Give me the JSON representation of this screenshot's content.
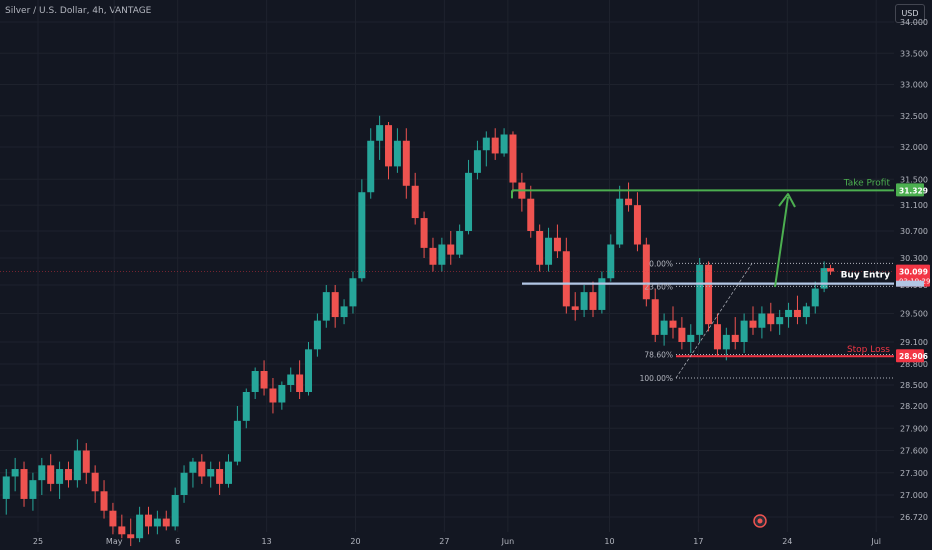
{
  "header": {
    "title": "Silver / U.S. Dollar, 4h, VANTAGE",
    "currency_button": "USD"
  },
  "colors": {
    "background": "#131722",
    "grid": "#1e222d",
    "up_candle": "#26a69a",
    "down_candle": "#ef5350",
    "take_profit": "#4caf50",
    "buy_entry": "#b2c6e4",
    "stop_loss": "#f23645",
    "price_badge": "#f23645"
  },
  "chart_data": {
    "type": "candlestick",
    "symbol": "Silver / U.S. Dollar",
    "interval": "4h",
    "exchange": "VANTAGE",
    "ylim": [
      26.6,
      34.3
    ],
    "y_ticks": [
      34.0,
      33.5,
      33.0,
      32.5,
      32.0,
      31.5,
      31.1,
      30.7,
      30.3,
      29.9,
      29.5,
      29.1,
      28.8,
      28.5,
      28.2,
      27.9,
      27.6,
      27.3,
      27.0,
      26.72
    ],
    "y_tick_labels": [
      "34.000",
      "33.500",
      "33.000",
      "32.500",
      "32.000",
      "31.500",
      "31.100",
      "30.700",
      "30.300",
      "29.900",
      "29.500",
      "29.100",
      "28.800",
      "28.500",
      "28.200",
      "27.900",
      "27.600",
      "27.300",
      "27.000",
      "26.720"
    ],
    "x_ticks": [
      {
        "label": "25",
        "x": 0.0
      },
      {
        "label": "May",
        "x": 6.0
      },
      {
        "label": "6",
        "x": 11.0
      },
      {
        "label": "13",
        "x": 18.0
      },
      {
        "label": "20",
        "x": 25.0
      },
      {
        "label": "27",
        "x": 32.0
      },
      {
        "label": "Jun",
        "x": 37.0
      },
      {
        "label": "10",
        "x": 45.0
      },
      {
        "label": "17",
        "x": 52.0
      },
      {
        "label": "24",
        "x": 59.0
      },
      {
        "label": "Jul",
        "x": 66.0
      }
    ],
    "x_range": [
      -2.6,
      67.0
    ],
    "candles": [
      {
        "x": -2.5,
        "o": 26.95,
        "h": 27.35,
        "l": 26.75,
        "c": 27.25
      },
      {
        "x": -1.8,
        "o": 27.25,
        "h": 27.5,
        "l": 27.05,
        "c": 27.35
      },
      {
        "x": -1.1,
        "o": 27.35,
        "h": 27.45,
        "l": 26.85,
        "c": 26.95
      },
      {
        "x": -0.4,
        "o": 26.95,
        "h": 27.3,
        "l": 26.8,
        "c": 27.2
      },
      {
        "x": 0.3,
        "o": 27.2,
        "h": 27.5,
        "l": 27.0,
        "c": 27.4
      },
      {
        "x": 1.0,
        "o": 27.4,
        "h": 27.55,
        "l": 27.05,
        "c": 27.15
      },
      {
        "x": 1.7,
        "o": 27.15,
        "h": 27.45,
        "l": 26.95,
        "c": 27.35
      },
      {
        "x": 2.4,
        "o": 27.35,
        "h": 27.45,
        "l": 27.1,
        "c": 27.2
      },
      {
        "x": 3.1,
        "o": 27.2,
        "h": 27.75,
        "l": 27.1,
        "c": 27.6
      },
      {
        "x": 3.8,
        "o": 27.6,
        "h": 27.7,
        "l": 27.15,
        "c": 27.3
      },
      {
        "x": 4.5,
        "o": 27.3,
        "h": 27.4,
        "l": 26.9,
        "c": 27.05
      },
      {
        "x": 5.2,
        "o": 27.05,
        "h": 27.2,
        "l": 26.7,
        "c": 26.8
      },
      {
        "x": 5.9,
        "o": 26.8,
        "h": 26.9,
        "l": 26.5,
        "c": 26.6
      },
      {
        "x": 6.6,
        "o": 26.6,
        "h": 26.75,
        "l": 26.45,
        "c": 26.5
      },
      {
        "x": 7.3,
        "o": 26.5,
        "h": 26.7,
        "l": 26.35,
        "c": 26.45
      },
      {
        "x": 8.0,
        "o": 26.45,
        "h": 26.85,
        "l": 26.4,
        "c": 26.75
      },
      {
        "x": 8.7,
        "o": 26.75,
        "h": 26.85,
        "l": 26.5,
        "c": 26.6
      },
      {
        "x": 9.4,
        "o": 26.6,
        "h": 26.8,
        "l": 26.5,
        "c": 26.7
      },
      {
        "x": 10.1,
        "o": 26.7,
        "h": 26.8,
        "l": 26.55,
        "c": 26.6
      },
      {
        "x": 10.8,
        "o": 26.6,
        "h": 27.1,
        "l": 26.55,
        "c": 27.0
      },
      {
        "x": 11.5,
        "o": 27.0,
        "h": 27.4,
        "l": 26.9,
        "c": 27.3
      },
      {
        "x": 12.2,
        "o": 27.3,
        "h": 27.5,
        "l": 27.1,
        "c": 27.45
      },
      {
        "x": 12.9,
        "o": 27.45,
        "h": 27.55,
        "l": 27.15,
        "c": 27.25
      },
      {
        "x": 13.6,
        "o": 27.25,
        "h": 27.45,
        "l": 27.1,
        "c": 27.35
      },
      {
        "x": 14.3,
        "o": 27.35,
        "h": 27.45,
        "l": 27.0,
        "c": 27.15
      },
      {
        "x": 15.0,
        "o": 27.15,
        "h": 27.55,
        "l": 27.1,
        "c": 27.45
      },
      {
        "x": 15.7,
        "o": 27.45,
        "h": 28.2,
        "l": 27.4,
        "c": 28.0
      },
      {
        "x": 16.4,
        "o": 28.0,
        "h": 28.45,
        "l": 27.9,
        "c": 28.4
      },
      {
        "x": 17.1,
        "o": 28.4,
        "h": 28.75,
        "l": 28.3,
        "c": 28.7
      },
      {
        "x": 17.8,
        "o": 28.7,
        "h": 28.85,
        "l": 28.35,
        "c": 28.45
      },
      {
        "x": 18.5,
        "o": 28.45,
        "h": 28.6,
        "l": 28.1,
        "c": 28.25
      },
      {
        "x": 19.2,
        "o": 28.25,
        "h": 28.55,
        "l": 28.15,
        "c": 28.5
      },
      {
        "x": 19.9,
        "o": 28.5,
        "h": 28.75,
        "l": 28.4,
        "c": 28.65
      },
      {
        "x": 20.6,
        "o": 28.65,
        "h": 28.85,
        "l": 28.3,
        "c": 28.4
      },
      {
        "x": 21.3,
        "o": 28.4,
        "h": 29.1,
        "l": 28.35,
        "c": 29.0
      },
      {
        "x": 22.0,
        "o": 29.0,
        "h": 29.5,
        "l": 28.9,
        "c": 29.4
      },
      {
        "x": 22.7,
        "o": 29.4,
        "h": 29.9,
        "l": 29.3,
        "c": 29.8
      },
      {
        "x": 23.4,
        "o": 29.8,
        "h": 29.9,
        "l": 29.3,
        "c": 29.45
      },
      {
        "x": 24.1,
        "o": 29.45,
        "h": 29.7,
        "l": 29.35,
        "c": 29.6
      },
      {
        "x": 24.8,
        "o": 29.6,
        "h": 30.1,
        "l": 29.5,
        "c": 30.0
      },
      {
        "x": 25.5,
        "o": 30.0,
        "h": 31.5,
        "l": 29.95,
        "c": 31.3
      },
      {
        "x": 26.2,
        "o": 31.3,
        "h": 32.3,
        "l": 31.2,
        "c": 32.1
      },
      {
        "x": 26.9,
        "o": 32.1,
        "h": 32.5,
        "l": 31.8,
        "c": 32.35
      },
      {
        "x": 27.6,
        "o": 32.35,
        "h": 32.4,
        "l": 31.5,
        "c": 31.7
      },
      {
        "x": 28.3,
        "o": 31.7,
        "h": 32.3,
        "l": 31.6,
        "c": 32.1
      },
      {
        "x": 29.0,
        "o": 32.1,
        "h": 32.3,
        "l": 31.2,
        "c": 31.4
      },
      {
        "x": 29.7,
        "o": 31.4,
        "h": 31.6,
        "l": 30.8,
        "c": 30.9
      },
      {
        "x": 30.4,
        "o": 30.9,
        "h": 31.0,
        "l": 30.3,
        "c": 30.45
      },
      {
        "x": 31.1,
        "o": 30.45,
        "h": 30.6,
        "l": 30.1,
        "c": 30.2
      },
      {
        "x": 31.8,
        "o": 30.2,
        "h": 30.6,
        "l": 30.1,
        "c": 30.5
      },
      {
        "x": 32.5,
        "o": 30.5,
        "h": 30.7,
        "l": 30.2,
        "c": 30.35
      },
      {
        "x": 33.2,
        "o": 30.35,
        "h": 30.8,
        "l": 30.3,
        "c": 30.7
      },
      {
        "x": 33.9,
        "o": 30.7,
        "h": 31.8,
        "l": 30.65,
        "c": 31.6
      },
      {
        "x": 34.6,
        "o": 31.6,
        "h": 32.1,
        "l": 31.5,
        "c": 31.95
      },
      {
        "x": 35.3,
        "o": 31.95,
        "h": 32.25,
        "l": 31.7,
        "c": 32.15
      },
      {
        "x": 36.0,
        "o": 32.15,
        "h": 32.3,
        "l": 31.8,
        "c": 31.9
      },
      {
        "x": 36.7,
        "o": 31.9,
        "h": 32.3,
        "l": 31.85,
        "c": 32.2
      },
      {
        "x": 37.4,
        "o": 32.2,
        "h": 32.25,
        "l": 31.3,
        "c": 31.45
      },
      {
        "x": 38.1,
        "o": 31.45,
        "h": 31.6,
        "l": 31.0,
        "c": 31.2
      },
      {
        "x": 38.8,
        "o": 31.2,
        "h": 31.4,
        "l": 30.6,
        "c": 30.7
      },
      {
        "x": 39.5,
        "o": 30.7,
        "h": 30.8,
        "l": 30.1,
        "c": 30.2
      },
      {
        "x": 40.2,
        "o": 30.2,
        "h": 30.75,
        "l": 30.1,
        "c": 30.6
      },
      {
        "x": 40.9,
        "o": 30.6,
        "h": 30.8,
        "l": 30.3,
        "c": 30.4
      },
      {
        "x": 41.6,
        "o": 30.4,
        "h": 30.6,
        "l": 29.5,
        "c": 29.6
      },
      {
        "x": 42.3,
        "o": 29.6,
        "h": 29.8,
        "l": 29.4,
        "c": 29.55
      },
      {
        "x": 43.0,
        "o": 29.55,
        "h": 29.9,
        "l": 29.45,
        "c": 29.8
      },
      {
        "x": 43.7,
        "o": 29.8,
        "h": 29.95,
        "l": 29.45,
        "c": 29.55
      },
      {
        "x": 44.4,
        "o": 29.55,
        "h": 30.1,
        "l": 29.5,
        "c": 30.0
      },
      {
        "x": 45.1,
        "o": 30.0,
        "h": 30.65,
        "l": 29.95,
        "c": 30.5
      },
      {
        "x": 45.8,
        "o": 30.5,
        "h": 31.4,
        "l": 30.45,
        "c": 31.2
      },
      {
        "x": 46.5,
        "o": 31.2,
        "h": 31.45,
        "l": 31.0,
        "c": 31.1
      },
      {
        "x": 47.2,
        "o": 31.1,
        "h": 31.3,
        "l": 30.4,
        "c": 30.5
      },
      {
        "x": 47.9,
        "o": 30.5,
        "h": 30.6,
        "l": 29.6,
        "c": 29.7
      },
      {
        "x": 48.6,
        "o": 29.7,
        "h": 29.85,
        "l": 29.1,
        "c": 29.2
      },
      {
        "x": 49.3,
        "o": 29.2,
        "h": 29.5,
        "l": 29.05,
        "c": 29.4
      },
      {
        "x": 50.0,
        "o": 29.4,
        "h": 29.6,
        "l": 29.15,
        "c": 29.3
      },
      {
        "x": 50.7,
        "o": 29.3,
        "h": 29.45,
        "l": 29.0,
        "c": 29.1
      },
      {
        "x": 51.4,
        "o": 29.1,
        "h": 29.35,
        "l": 28.95,
        "c": 29.2
      },
      {
        "x": 52.1,
        "o": 29.2,
        "h": 30.3,
        "l": 29.1,
        "c": 30.2
      },
      {
        "x": 52.8,
        "o": 30.2,
        "h": 30.25,
        "l": 29.25,
        "c": 29.35
      },
      {
        "x": 53.5,
        "o": 29.35,
        "h": 29.5,
        "l": 28.9,
        "c": 29.0
      },
      {
        "x": 54.2,
        "o": 29.0,
        "h": 29.3,
        "l": 28.85,
        "c": 29.2
      },
      {
        "x": 54.9,
        "o": 29.2,
        "h": 29.45,
        "l": 29.0,
        "c": 29.1
      },
      {
        "x": 55.6,
        "o": 29.1,
        "h": 29.5,
        "l": 28.95,
        "c": 29.4
      },
      {
        "x": 56.3,
        "o": 29.4,
        "h": 29.6,
        "l": 29.2,
        "c": 29.3
      },
      {
        "x": 57.0,
        "o": 29.3,
        "h": 29.6,
        "l": 29.15,
        "c": 29.5
      },
      {
        "x": 57.7,
        "o": 29.5,
        "h": 29.65,
        "l": 29.25,
        "c": 29.35
      },
      {
        "x": 58.4,
        "o": 29.35,
        "h": 29.55,
        "l": 29.2,
        "c": 29.45
      },
      {
        "x": 59.1,
        "o": 29.45,
        "h": 29.65,
        "l": 29.3,
        "c": 29.55
      },
      {
        "x": 59.8,
        "o": 29.55,
        "h": 29.75,
        "l": 29.35,
        "c": 29.45
      },
      {
        "x": 60.5,
        "o": 29.45,
        "h": 29.65,
        "l": 29.35,
        "c": 29.6
      },
      {
        "x": 61.2,
        "o": 29.6,
        "h": 29.95,
        "l": 29.5,
        "c": 29.85
      },
      {
        "x": 61.9,
        "o": 29.85,
        "h": 30.25,
        "l": 29.8,
        "c": 30.15
      },
      {
        "x": 62.4,
        "o": 30.15,
        "h": 30.2,
        "l": 30.05,
        "c": 30.1
      }
    ],
    "annotations": {
      "take_profit": {
        "label": "Take Profit",
        "price": 31.329,
        "price_label": "31.329"
      },
      "buy_entry": {
        "label": "Buy Entry",
        "price": 29.92
      },
      "stop_loss": {
        "label": "Stop Loss",
        "price": 28.906,
        "price_label": "28.906"
      },
      "current_price": {
        "price": 30.099,
        "price_label": "30.099",
        "countdown": "03:19:29"
      },
      "fibonacci": [
        {
          "label": "0.00%",
          "price": 30.22
        },
        {
          "label": "23.60%",
          "price": 29.88
        },
        {
          "label": "78.60%",
          "price": 28.93
        },
        {
          "label": "100.00%",
          "price": 28.6
        }
      ]
    }
  }
}
